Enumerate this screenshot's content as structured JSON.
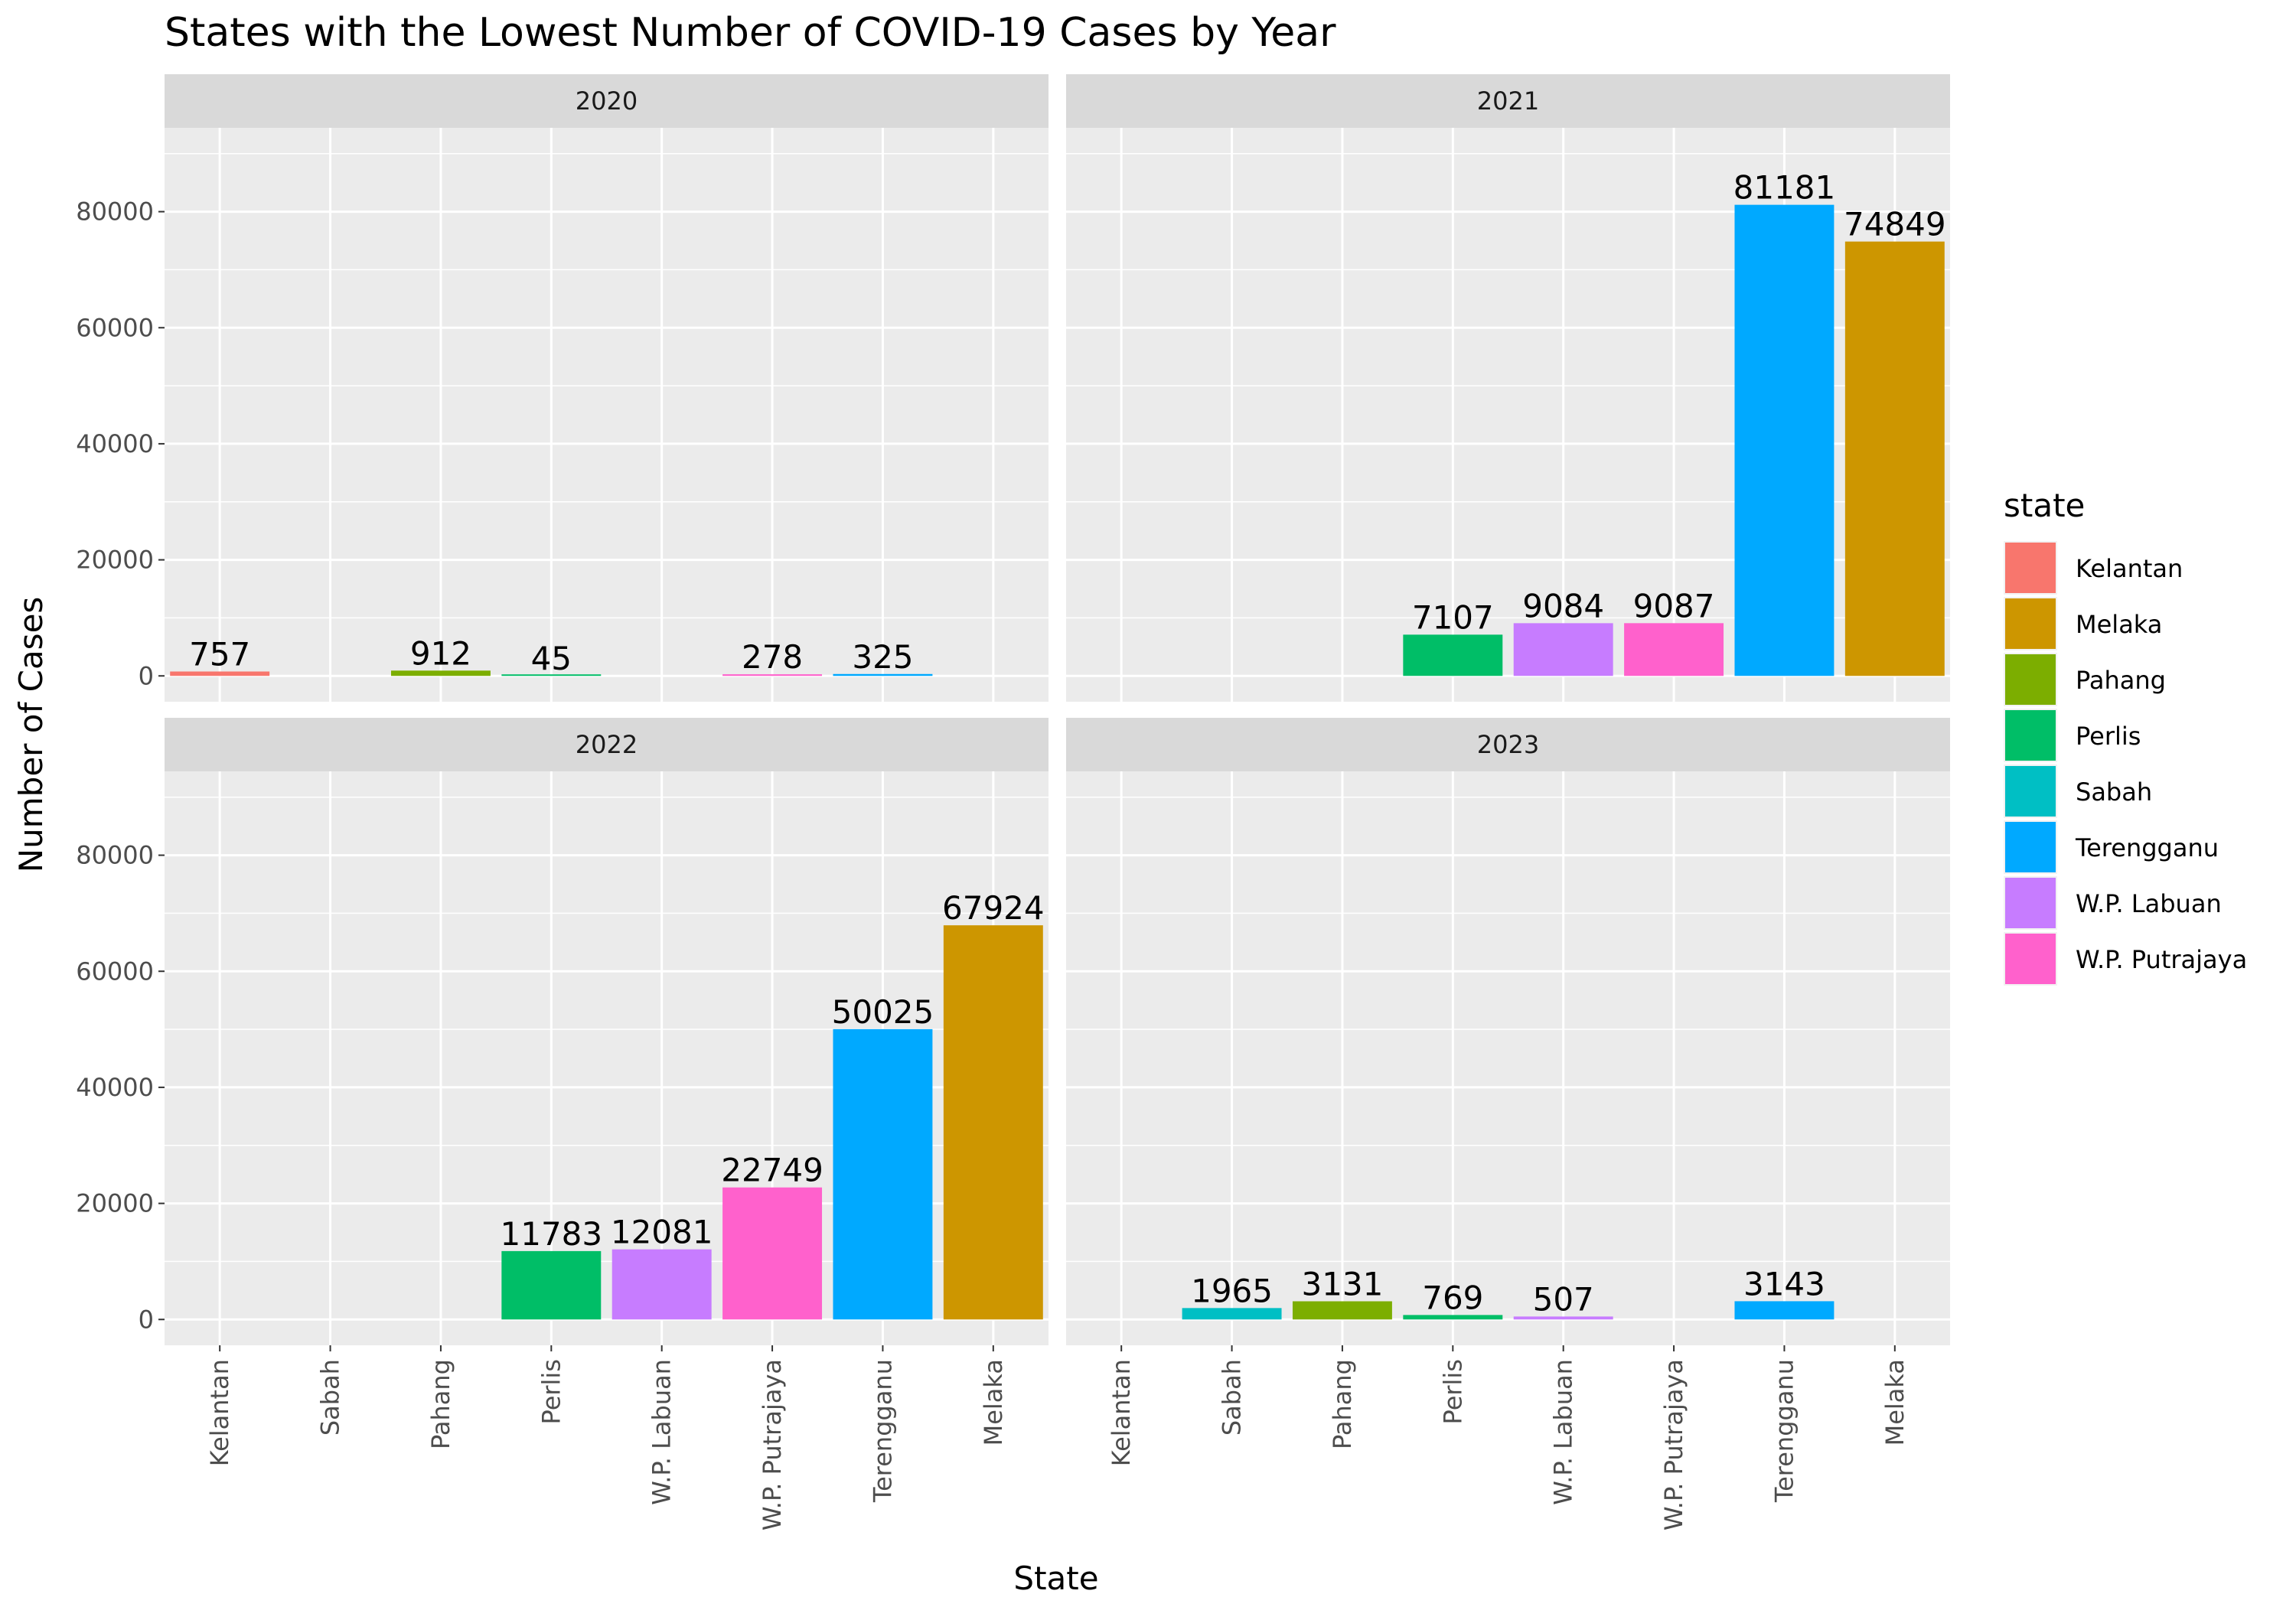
{
  "chart_data": {
    "type": "bar",
    "title": "States with the Lowest Number of COVID-19 Cases by Year",
    "xlabel": "State",
    "ylabel": "Number of Cases",
    "ylim": [
      0,
      90000
    ],
    "yticks": [
      0,
      20000,
      40000,
      60000,
      80000
    ],
    "ytick_labels": [
      "0",
      "20000",
      "40000",
      "60000",
      "80000"
    ],
    "categories": [
      "Kelantan",
      "Sabah",
      "Pahang",
      "Perlis",
      "W.P. Labuan",
      "W.P. Putrajaya",
      "Terengganu",
      "Melaka"
    ],
    "legend": {
      "title": "state",
      "placement": "right",
      "entries": [
        {
          "name": "Kelantan",
          "color": "#F8766D"
        },
        {
          "name": "Melaka",
          "color": "#CD9600"
        },
        {
          "name": "Pahang",
          "color": "#7CAE00"
        },
        {
          "name": "Perlis",
          "color": "#00BE67"
        },
        {
          "name": "Sabah",
          "color": "#00BFC4"
        },
        {
          "name": "Terengganu",
          "color": "#00A9FF"
        },
        {
          "name": "W.P. Labuan",
          "color": "#C77CFF"
        },
        {
          "name": "W.P. Putrajaya",
          "color": "#FF61CC"
        }
      ]
    },
    "grid": true,
    "panels": [
      {
        "label": "2020",
        "bars": [
          {
            "state": "Kelantan",
            "value": 757,
            "label": "757"
          },
          {
            "state": "Pahang",
            "value": 912,
            "label": "912"
          },
          {
            "state": "Perlis",
            "value": 45,
            "label": "45"
          },
          {
            "state": "W.P. Putrajaya",
            "value": 278,
            "label": "278"
          },
          {
            "state": "Terengganu",
            "value": 325,
            "label": "325"
          }
        ]
      },
      {
        "label": "2021",
        "bars": [
          {
            "state": "Perlis",
            "value": 7107,
            "label": "7107"
          },
          {
            "state": "W.P. Labuan",
            "value": 9084,
            "label": "9084"
          },
          {
            "state": "W.P. Putrajaya",
            "value": 9087,
            "label": "9087"
          },
          {
            "state": "Terengganu",
            "value": 81181,
            "label": "81181"
          },
          {
            "state": "Melaka",
            "value": 74849,
            "label": "74849"
          }
        ]
      },
      {
        "label": "2022",
        "bars": [
          {
            "state": "Perlis",
            "value": 11783,
            "label": "11783"
          },
          {
            "state": "W.P. Labuan",
            "value": 12081,
            "label": "12081"
          },
          {
            "state": "W.P. Putrajaya",
            "value": 22749,
            "label": "22749"
          },
          {
            "state": "Terengganu",
            "value": 50025,
            "label": "50025"
          },
          {
            "state": "Melaka",
            "value": 67924,
            "label": "67924"
          }
        ]
      },
      {
        "label": "2023",
        "bars": [
          {
            "state": "Sabah",
            "value": 1965,
            "label": "1965"
          },
          {
            "state": "Pahang",
            "value": 3131,
            "label": "3131"
          },
          {
            "state": "Perlis",
            "value": 769,
            "label": "769"
          },
          {
            "state": "W.P. Labuan",
            "value": 507,
            "label": "507"
          },
          {
            "state": "Terengganu",
            "value": 3143,
            "label": "3143"
          }
        ]
      }
    ]
  }
}
